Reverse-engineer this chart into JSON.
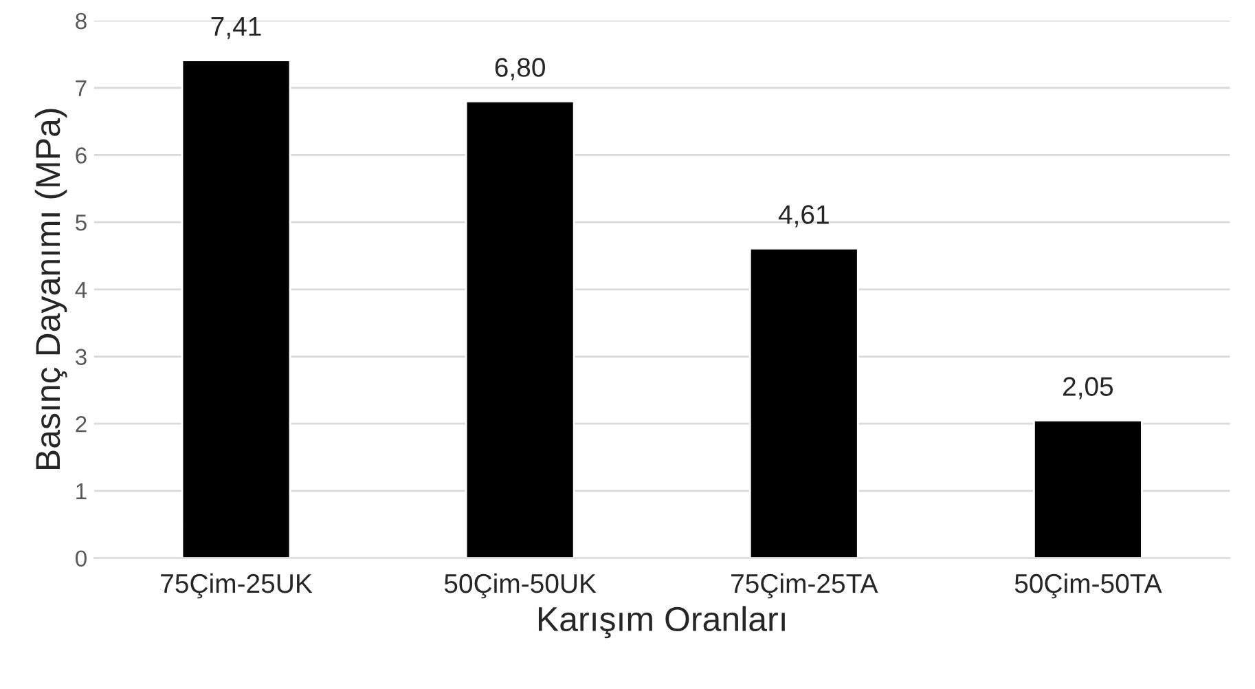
{
  "chart_data": {
    "type": "bar",
    "xlabel": "Karışım Oranları",
    "ylabel": "Basınç Dayanımı (MPa)",
    "categories": [
      "75Çim-25UK",
      "50Çim-50UK",
      "75Çim-25TA",
      "50Çim-50TA"
    ],
    "values": [
      7.41,
      6.8,
      4.61,
      2.05
    ],
    "value_labels": [
      "7,41",
      "6,80",
      "4,61",
      "2,05"
    ],
    "color": "#000000",
    "ylim": [
      0,
      8
    ],
    "yticks": [
      0,
      1,
      2,
      3,
      4,
      5,
      6,
      7,
      8
    ],
    "grid": "y",
    "legend": false
  }
}
